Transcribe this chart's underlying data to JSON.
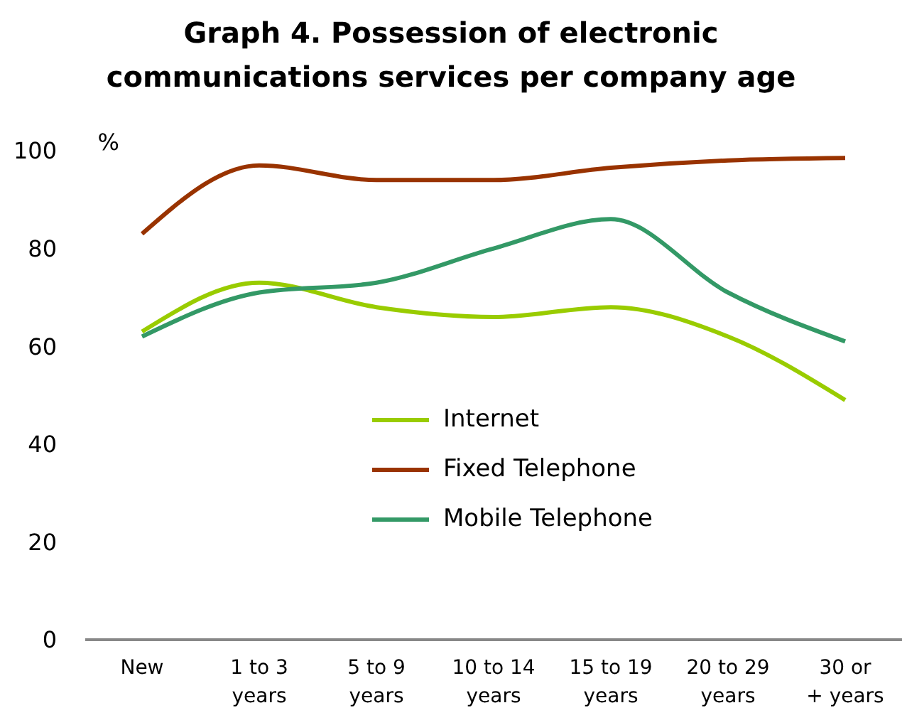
{
  "chart_data": {
    "type": "line",
    "title": "Graph 4. Possession of electronic communications services per company age",
    "ylabel": "%",
    "categories": [
      "New",
      "1 to 3 years",
      "5 to 9 years",
      "10 to 14 years",
      "15 to 19 years",
      "20 to 29 years",
      "30 or + years"
    ],
    "series": [
      {
        "name": "Internet",
        "color": "#99cc00",
        "values": [
          63,
          73,
          68,
          66,
          68,
          62,
          49
        ]
      },
      {
        "name": "Fixed Telephone",
        "color": "#993300",
        "values": [
          83,
          97,
          94,
          94,
          96.5,
          98,
          98.5
        ]
      },
      {
        "name": "Mobile Telephone",
        "color": "#339966",
        "values": [
          62,
          71,
          73,
          80,
          86,
          71,
          61
        ]
      }
    ],
    "ylim": [
      0,
      100
    ],
    "yticks": [
      0,
      20,
      40,
      60,
      80,
      100
    ],
    "legend": "bottom",
    "marker": "none",
    "line_style": "solid"
  }
}
